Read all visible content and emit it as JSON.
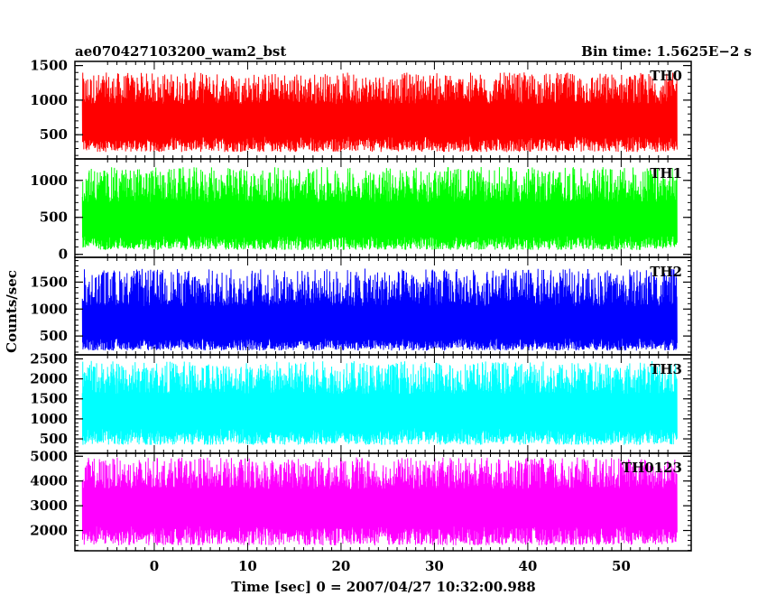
{
  "chart_data": {
    "type": "line",
    "title_left": "ae070427103200_wam2_bst",
    "title_right": "Bin time: 1.5625E−2 s",
    "xlabel": "Time [sec] 0 = 2007/04/27 10:32:00.988",
    "ylabel": "Counts/sec",
    "xlim": [
      -8.5,
      57.5
    ],
    "x_ticks": [
      0,
      10,
      20,
      30,
      40,
      50
    ],
    "x_tick_labels": [
      "0",
      "10",
      "20",
      "30",
      "40",
      "50"
    ],
    "data_x_range": [
      -7.7,
      56.0
    ],
    "bin_time": 0.015625,
    "grid": false,
    "panels": [
      {
        "name": "TH0",
        "color": "#ff0000",
        "ylim": [
          150,
          1560
        ],
        "y_ticks": [
          500,
          1000,
          1500
        ],
        "y_tick_labels": [
          "500",
          "1000",
          "1500"
        ],
        "typical_min": 250,
        "typical_max": 1400,
        "mean": 700
      },
      {
        "name": "TH1",
        "color": "#00ff00",
        "ylim": [
          -40,
          1290
        ],
        "y_ticks": [
          0,
          500,
          1000
        ],
        "y_tick_labels": [
          "0",
          "500",
          "1000"
        ],
        "typical_min": 60,
        "typical_max": 1180,
        "mean": 450
      },
      {
        "name": "TH2",
        "color": "#0000ff",
        "ylim": [
          150,
          1960
        ],
        "y_ticks": [
          500,
          1000,
          1500
        ],
        "y_tick_labels": [
          "500",
          "1000",
          "1500"
        ],
        "typical_min": 230,
        "typical_max": 1750,
        "mean": 680
      },
      {
        "name": "TH3",
        "color": "#00ffff",
        "ylim": [
          140,
          2600
        ],
        "y_ticks": [
          500,
          1000,
          1500,
          2000,
          2500
        ],
        "y_tick_labels": [
          "500",
          "1000",
          "1500",
          "2000",
          "2500"
        ],
        "typical_min": 350,
        "typical_max": 2450,
        "mean": 1180
      },
      {
        "name": "TH0123",
        "color": "#ff00ff",
        "ylim": [
          1180,
          5120
        ],
        "y_ticks": [
          2000,
          3000,
          4000,
          5000
        ],
        "y_tick_labels": [
          "2000",
          "3000",
          "4000",
          "5000"
        ],
        "typical_min": 1400,
        "typical_max": 4950,
        "mean": 3000
      }
    ]
  }
}
